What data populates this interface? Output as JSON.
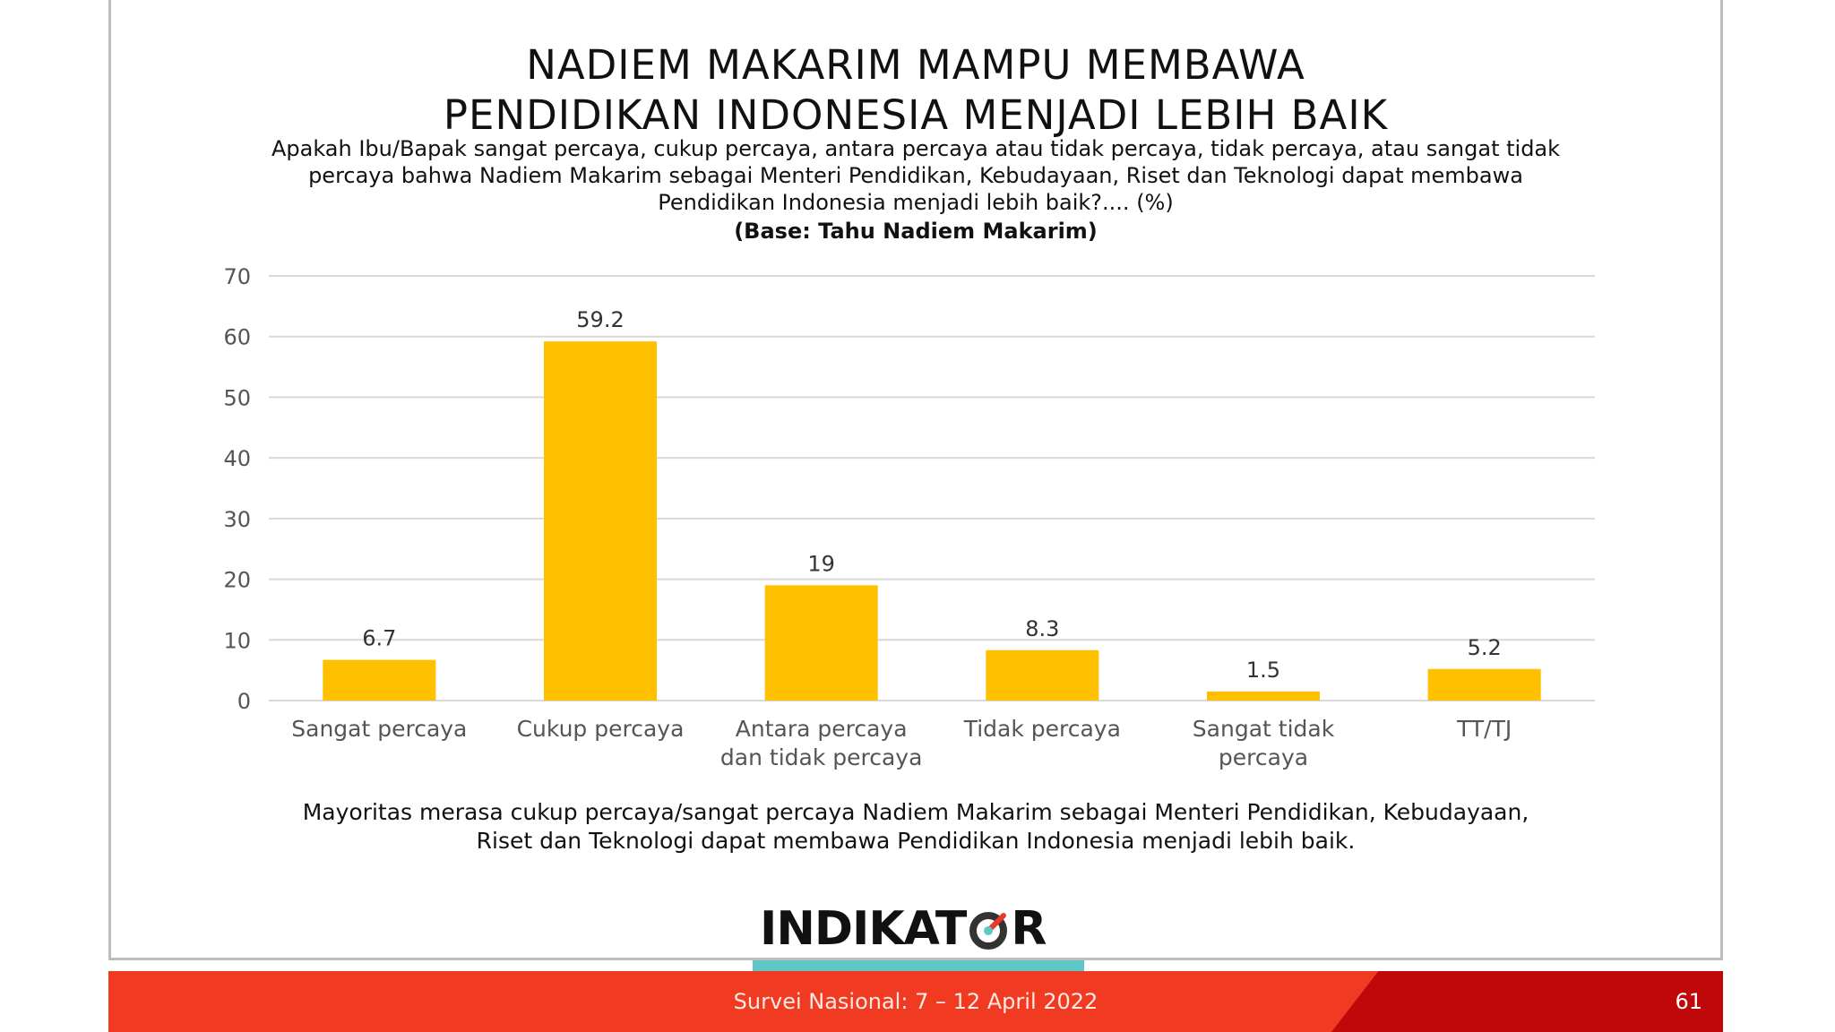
{
  "title": {
    "line1": "NADIEM MAKARIM MAMPU MEMBAWA",
    "line2": "PENDIDIKAN INDONESIA MENJADI LEBIH BAIK"
  },
  "question": {
    "line1": "Apakah Ibu/Bapak sangat percaya, cukup percaya, antara percaya atau tidak percaya, tidak percaya, atau sangat tidak",
    "line2": "percaya bahwa Nadiem Makarim sebagai Menteri Pendidikan, Kebudayaan, Riset dan Teknologi dapat membawa",
    "line3": "Pendidikan Indonesia menjadi lebih baik?.... (%)"
  },
  "base_note": "(Base: Tahu Nadiem Makarim)",
  "chart_data": {
    "type": "bar",
    "categories": [
      [
        "Sangat percaya"
      ],
      [
        "Cukup percaya"
      ],
      [
        "Antara percaya",
        "dan tidak percaya"
      ],
      [
        "Tidak percaya"
      ],
      [
        "Sangat tidak",
        "percaya"
      ],
      [
        "TT/TJ"
      ]
    ],
    "values": [
      6.7,
      59.2,
      19,
      8.3,
      1.5,
      5.2
    ],
    "value_labels": [
      "6.7",
      "59.2",
      "19",
      "8.3",
      "1.5",
      "5.2"
    ],
    "yticks": [
      0,
      10,
      20,
      30,
      40,
      50,
      60,
      70
    ],
    "ylim": [
      0,
      70
    ],
    "grid": true,
    "bar_color": "#ffc000",
    "grid_color": "#d9d9d9"
  },
  "summary": {
    "line1": "Mayoritas merasa cukup percaya/sangat percaya Nadiem Makarim sebagai Menteri Pendidikan, Kebudayaan,",
    "line2": "Riset dan Teknologi dapat membawa Pendidikan Indonesia menjadi lebih baik."
  },
  "logo": {
    "text_before": "INDIKAT",
    "text_after": "R"
  },
  "footer": {
    "text": "Survei Nasional: 7 – 12 April 2022",
    "page_number": "61"
  },
  "colors": {
    "footer_red": "#f03a22",
    "footer_dark_red": "#c0080a",
    "footer_teal": "#5fc7c8",
    "logo_accent": "#e8392b"
  }
}
